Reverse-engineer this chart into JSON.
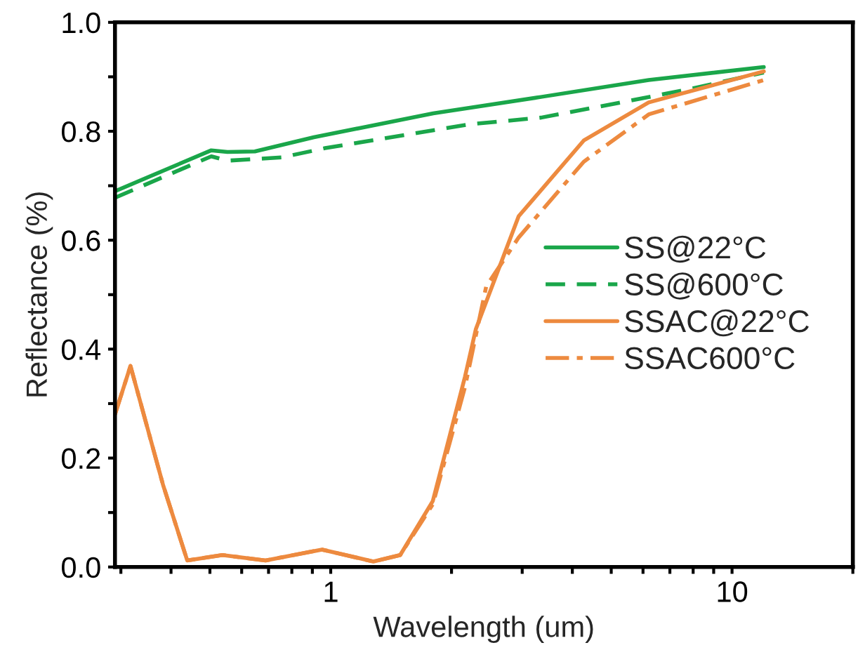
{
  "chart_data": {
    "type": "line",
    "xlabel": "Wavelength (um)",
    "ylabel": "Reflectance (%)",
    "log": "x",
    "xlim": [
      0.29,
      20
    ],
    "xticks": [
      {
        "value": 0.3,
        "label": null
      },
      {
        "value": 0.4,
        "label": null
      },
      {
        "value": 0.5,
        "label": null
      },
      {
        "value": 0.6,
        "label": null
      },
      {
        "value": 0.7,
        "label": null
      },
      {
        "value": 0.8,
        "label": null
      },
      {
        "value": 0.9,
        "label": null
      },
      1,
      {
        "value": 2,
        "label": null
      },
      {
        "value": 3,
        "label": null
      },
      {
        "value": 4,
        "label": null
      },
      {
        "value": 5,
        "label": null
      },
      {
        "value": 6,
        "label": null
      },
      {
        "value": 7,
        "label": null
      },
      {
        "value": 8,
        "label": null
      },
      {
        "value": 9,
        "label": null
      },
      10,
      {
        "value": 20,
        "label": null
      }
    ],
    "ylim": [
      0,
      1
    ],
    "yticks": [
      {
        "value": 0,
        "label": "0.0"
      },
      {
        "value": 0.1,
        "label": null
      },
      {
        "value": 0.2,
        "label": "0.2"
      },
      {
        "value": 0.3,
        "label": null
      },
      {
        "value": 0.4,
        "label": "0.4"
      },
      {
        "value": 0.5,
        "label": null
      },
      {
        "value": 0.6,
        "label": "0.6"
      },
      {
        "value": 0.7,
        "label": null
      },
      {
        "value": 0.8,
        "label": "0.8"
      },
      {
        "value": 0.9,
        "label": null
      },
      {
        "value": 1,
        "label": "1.0"
      }
    ],
    "grid": false,
    "legend": "right",
    "series": [
      {
        "name": "SS@22°C",
        "color": "#1aa64a",
        "line_style": "solid",
        "x": [
          0.29,
          0.504,
          0.553,
          0.647,
          0.908,
          1.8,
          3.34,
          6.2,
          12.0
        ],
        "values": [
          0.69,
          0.765,
          0.762,
          0.763,
          0.789,
          0.833,
          0.863,
          0.894,
          0.918
        ]
      },
      {
        "name": "SS@600°C",
        "color": "#1aa64a",
        "line_style": "dashed",
        "x": [
          0.29,
          0.504,
          0.553,
          0.755,
          0.968,
          2.23,
          3.34,
          5.3,
          7.9,
          12.0
        ],
        "values": [
          0.678,
          0.754,
          0.746,
          0.752,
          0.769,
          0.813,
          0.825,
          0.853,
          0.878,
          0.908
        ]
      },
      {
        "name": "SSAC@22°C",
        "color": "#ed8a3f",
        "line_style": "solid",
        "x": [
          0.29,
          0.317,
          0.382,
          0.439,
          0.537,
          0.688,
          0.951,
          1.277,
          1.49,
          1.796,
          2.16,
          2.3,
          2.94,
          4.27,
          6.2,
          12.0
        ],
        "values": [
          0.28,
          0.369,
          0.151,
          0.012,
          0.022,
          0.012,
          0.032,
          0.01,
          0.022,
          0.121,
          0.349,
          0.437,
          0.644,
          0.783,
          0.853,
          0.91
        ]
      },
      {
        "name": "SSAC600°C",
        "color": "#ed8a3f",
        "line_style": "dashdot",
        "x": [
          0.29,
          0.317,
          0.382,
          0.439,
          0.537,
          0.688,
          0.951,
          1.277,
          1.49,
          1.796,
          2.16,
          2.44,
          2.94,
          4.27,
          6.2,
          12.0
        ],
        "values": [
          0.28,
          0.369,
          0.151,
          0.012,
          0.022,
          0.012,
          0.032,
          0.01,
          0.022,
          0.115,
          0.33,
          0.515,
          0.605,
          0.744,
          0.831,
          0.894
        ]
      }
    ]
  }
}
